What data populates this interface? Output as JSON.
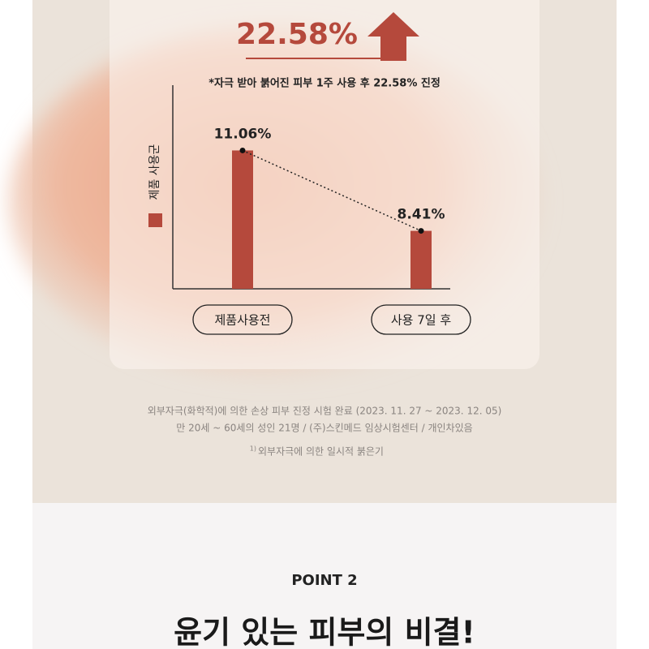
{
  "headline": "22.58%",
  "subtitle": "*자극 받아 붉어진 피부 1주 사용 후 22.58% 진정",
  "chart_data": {
    "type": "bar",
    "categories": [
      "제품사용전",
      "사용 7일 후"
    ],
    "series": [
      {
        "name": "제품 사용군",
        "color": "#b5493c",
        "values": [
          11.06,
          8.41
        ],
        "value_labels": [
          "11.06%",
          "8.41%"
        ]
      }
    ],
    "ylim": [
      6.5,
      11.5
    ]
  },
  "notes": [
    "외부자극(화학적)에 의한 손상 피부 진정 시험 완료 (2023. 11. 27 ~ 2023. 12. 05)",
    "만 20세 ~ 60세의 성인 21명 / (주)스킨메드 임상시험센터 / 개인차있음"
  ],
  "footnote": {
    "marker": "1)",
    "text": "외부자극에 의한 일시적 붉은기"
  },
  "point": {
    "label": "POINT 2",
    "heading": "윤기 있는 피부의 비결!"
  }
}
